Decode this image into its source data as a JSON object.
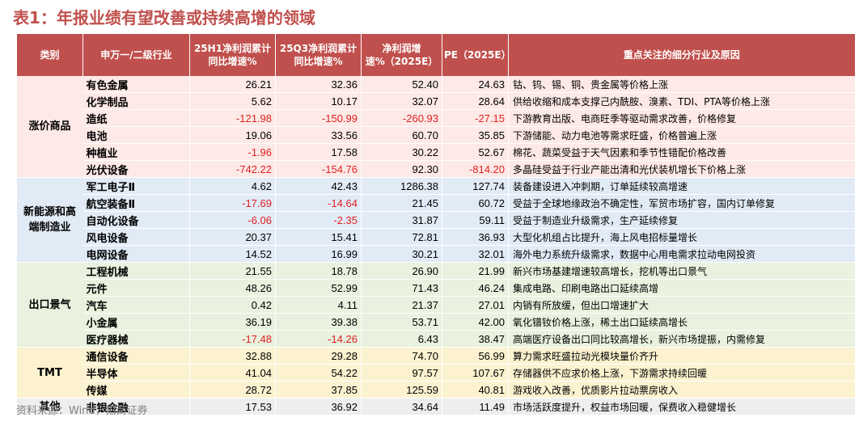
{
  "title": "表1：年报业绩有望改善或持续高增的领域",
  "headers": {
    "category": "类别",
    "industry": "申万一/二级行业",
    "h1": "25H1净利润累计同比增速%",
    "q3": "25Q3净利润累计同比增速%",
    "e2025": "净利润增速%（2025E）",
    "pe": "PE（2025E）",
    "reason": "重点关注的细分行业及原因"
  },
  "groups": [
    {
      "name": "涨价商品",
      "rows": [
        {
          "industry": "有色金属",
          "h1": "26.21",
          "q3": "32.36",
          "e2025": "52.40",
          "pe": "24.63",
          "reason": "钴、钨、锡、铜、贵金属等价格上涨"
        },
        {
          "industry": "化学制品",
          "h1": "5.62",
          "q3": "10.17",
          "e2025": "32.07",
          "pe": "28.64",
          "reason": "供给收缩和成本支撑己内酰胺、溴素、TDI、PTA等价格上涨"
        },
        {
          "industry": "造纸",
          "h1": "-121.98",
          "q3": "-150.99",
          "e2025": "-260.93",
          "pe": "-27.15",
          "reason": "下游教育出版、电商旺季等驱动需求改善，价格修复"
        },
        {
          "industry": "电池",
          "h1": "19.06",
          "q3": "33.56",
          "e2025": "60.70",
          "pe": "35.85",
          "reason": "下游储能、动力电池等需求旺盛，价格普遍上涨"
        },
        {
          "industry": "种植业",
          "h1": "-1.96",
          "q3": "17.58",
          "e2025": "30.22",
          "pe": "52.67",
          "reason": "棉花、蔬菜受益于天气因素和季节性错配价格改善"
        },
        {
          "industry": "光伏设备",
          "h1": "-742.22",
          "q3": "-154.76",
          "e2025": "92.30",
          "pe": "-814.20",
          "reason": "多晶硅受益于行业产能出清和光伏装机增长下价格上涨"
        }
      ]
    },
    {
      "name": "新能源和高端制造业",
      "rows": [
        {
          "industry": "军工电子Ⅱ",
          "h1": "4.62",
          "q3": "42.43",
          "e2025": "1286.38",
          "pe": "127.74",
          "reason": "装备建设进入冲刺期，订单延续较高增速"
        },
        {
          "industry": "航空装备Ⅱ",
          "h1": "-17.69",
          "q3": "-14.64",
          "e2025": "21.45",
          "pe": "60.72",
          "reason": "受益于全球地缘政治不确定性，军贸市场扩容，国内订单修复"
        },
        {
          "industry": "自动化设备",
          "h1": "-6.06",
          "q3": "-2.35",
          "e2025": "31.87",
          "pe": "59.11",
          "reason": "受益于制造业升级需求，生产延续修复"
        },
        {
          "industry": "风电设备",
          "h1": "20.37",
          "q3": "15.41",
          "e2025": "72.81",
          "pe": "36.93",
          "reason": "大型化机组占比提升，海上风电招标量增长"
        },
        {
          "industry": "电网设备",
          "h1": "14.52",
          "q3": "16.99",
          "e2025": "30.21",
          "pe": "32.01",
          "reason": "海外电力系统升级需求，数据中心用电需求拉动电网投资"
        }
      ]
    },
    {
      "name": "出口景气",
      "rows": [
        {
          "industry": "工程机械",
          "h1": "21.55",
          "q3": "18.78",
          "e2025": "26.90",
          "pe": "21.99",
          "reason": "新兴市场基建增速较高增长，挖机等出口景气"
        },
        {
          "industry": "元件",
          "h1": "48.26",
          "q3": "52.99",
          "e2025": "71.43",
          "pe": "46.24",
          "reason": "集成电路、印刷电路出口延续高增"
        },
        {
          "industry": "汽车",
          "h1": "0.42",
          "q3": "4.11",
          "e2025": "21.37",
          "pe": "27.01",
          "reason": "内销有所放缓，但出口增速扩大"
        },
        {
          "industry": "小金属",
          "h1": "36.19",
          "q3": "39.38",
          "e2025": "53.71",
          "pe": "42.00",
          "reason": "氧化镨钕价格上涨，稀土出口延续高增长"
        },
        {
          "industry": "医疗器械",
          "h1": "-17.48",
          "q3": "-14.26",
          "e2025": "6.43",
          "pe": "38.47",
          "reason": "高端医疗设备出口同比较高增长，新兴市场提振，内需修复"
        }
      ]
    },
    {
      "name": "TMT",
      "rows": [
        {
          "industry": "通信设备",
          "h1": "32.88",
          "q3": "29.28",
          "e2025": "74.70",
          "pe": "56.99",
          "reason": "算力需求旺盛拉动光模块量价齐升"
        },
        {
          "industry": "半导体",
          "h1": "41.04",
          "q3": "54.22",
          "e2025": "97.57",
          "pe": "107.67",
          "reason": "存储器供不应求价格上涨，下游需求持续回暖"
        },
        {
          "industry": "传媒",
          "h1": "28.72",
          "q3": "37.85",
          "e2025": "125.59",
          "pe": "40.81",
          "reason": "游戏收入改善，优质影片拉动票房收入"
        }
      ]
    },
    {
      "name": "其他",
      "rows": [
        {
          "industry": "非银金融",
          "h1": "17.53",
          "q3": "36.92",
          "e2025": "34.64",
          "pe": "11.49",
          "reason": "市场活跃度提升，权益市场回暖，保费收入稳健增长"
        }
      ]
    }
  ],
  "source": "资料来源：Wind，招商证券",
  "colors": {
    "header_bg": "#c0504d",
    "title": "#c0504d",
    "negative": "#e02020",
    "group_bg": [
      "#fde9e6",
      "#e1ebf6",
      "#e8f2de",
      "#fdf2d0",
      "#eeeeee"
    ]
  }
}
